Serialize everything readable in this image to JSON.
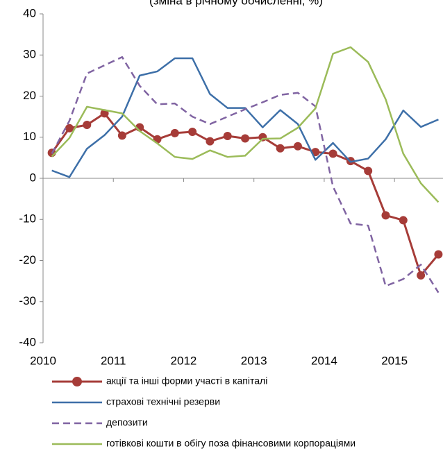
{
  "chart_data": {
    "type": "line",
    "title": "(зміна в річному обчисленні, %)",
    "x": [
      2010.125,
      2010.375,
      2010.625,
      2010.875,
      2011.125,
      2011.375,
      2011.625,
      2011.875,
      2012.125,
      2012.375,
      2012.625,
      2012.875,
      2013.125,
      2013.375,
      2013.625,
      2013.875,
      2014.125,
      2014.375,
      2014.625,
      2014.875,
      2015.125,
      2015.375,
      2015.625
    ],
    "series": [
      {
        "name": "акції та інші форми участі в капіталі",
        "color": "#a63c38",
        "marker": true,
        "dashed": false,
        "values": [
          6.2,
          12.2,
          13,
          15.8,
          10.4,
          12.4,
          9.5,
          11,
          11.3,
          9,
          10.3,
          9.7,
          10,
          7.3,
          7.8,
          6.4,
          6,
          4.2,
          1.8,
          -9,
          -10.2,
          -23.6,
          -18.5
        ]
      },
      {
        "name": "страхові технічні резерви",
        "color": "#3d6fa8",
        "marker": false,
        "dashed": false,
        "values": [
          1.9,
          0.3,
          7.2,
          10.5,
          15,
          25,
          26,
          29.2,
          29.2,
          20.5,
          17.1,
          17.1,
          12.4,
          16.6,
          13.2,
          4.5,
          8.6,
          4,
          4.8,
          9.5,
          16.5,
          12.5,
          14.3
        ]
      },
      {
        "name": "депозити",
        "color": "#8064a2",
        "marker": false,
        "dashed": true,
        "values": [
          6,
          14,
          25.5,
          27.5,
          29.5,
          22.5,
          18,
          18.2,
          15,
          13.2,
          15,
          16.8,
          18.5,
          20.3,
          20.8,
          17.5,
          -2,
          -11,
          -11.5,
          -26.2,
          -24.5,
          -21,
          -27.8
        ]
      },
      {
        "name": "готівкові кошти в обігу поза фінансовими корпораціями",
        "color": "#9bbb59",
        "marker": false,
        "dashed": false,
        "values": [
          5.3,
          9.8,
          17.4,
          16.6,
          15.8,
          11.5,
          8.5,
          5.2,
          4.7,
          6.8,
          5.2,
          5.5,
          9.6,
          9.7,
          12.3,
          17,
          30.3,
          31.9,
          28.3,
          19.2,
          6,
          -1.2,
          -5.8
        ]
      }
    ],
    "xlim": [
      2010,
      2015.7
    ],
    "xticks": [
      2010,
      2011,
      2012,
      2013,
      2014,
      2015
    ],
    "ylim": [
      -40,
      40
    ],
    "yticks": [
      -40,
      -30,
      -20,
      -10,
      0,
      10,
      20,
      30,
      40
    ],
    "grid": false,
    "legend": "bottom"
  }
}
